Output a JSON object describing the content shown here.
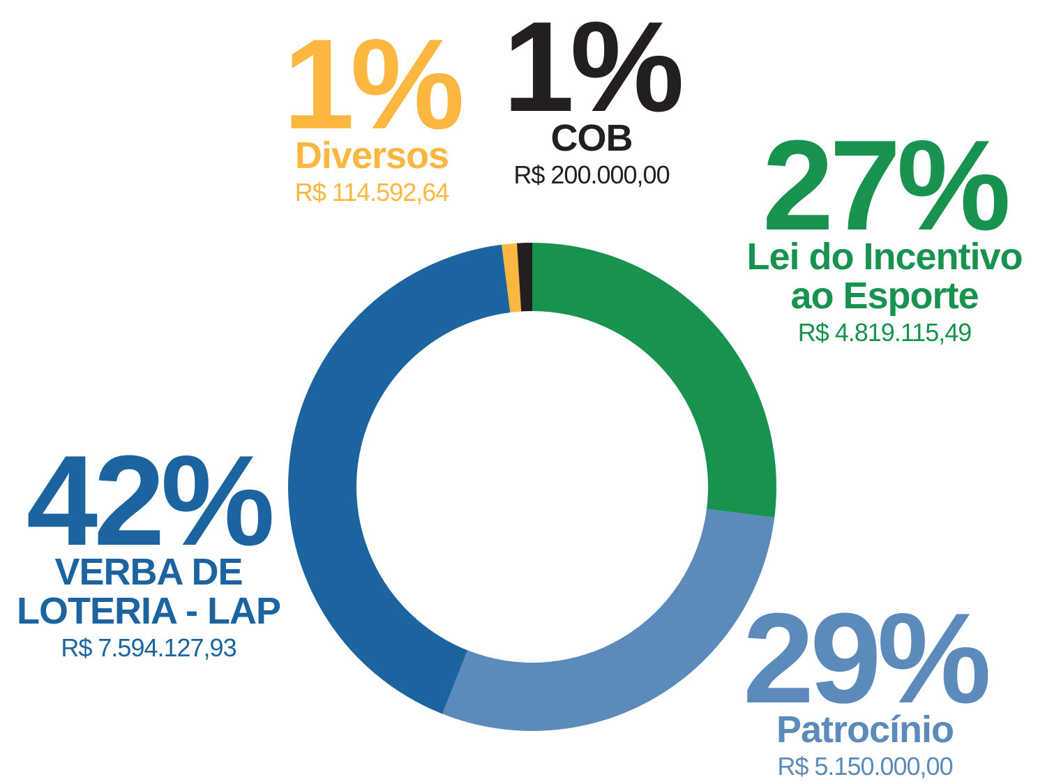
{
  "chart_data": {
    "type": "pie",
    "donut": true,
    "categories": [
      "Lei do Incentivo ao Esporte",
      "Patrocínio",
      "VERBA DE LOTERIA - LAP",
      "Diversos",
      "COB"
    ],
    "values": [
      27,
      29,
      42,
      1,
      1
    ],
    "value_labels": [
      "27%",
      "29%",
      "42%",
      "1%",
      "1%"
    ],
    "amount_labels": [
      "R$ 4.819.115,49",
      "R$ 5.150.000,00",
      "R$ 7.594.127,93",
      "R$ 114.592,64",
      "R$ 200.000,00"
    ],
    "colors": [
      "#17924f",
      "#5b8abb",
      "#1b64a0",
      "#fbb740",
      "#231f20"
    ]
  }
}
